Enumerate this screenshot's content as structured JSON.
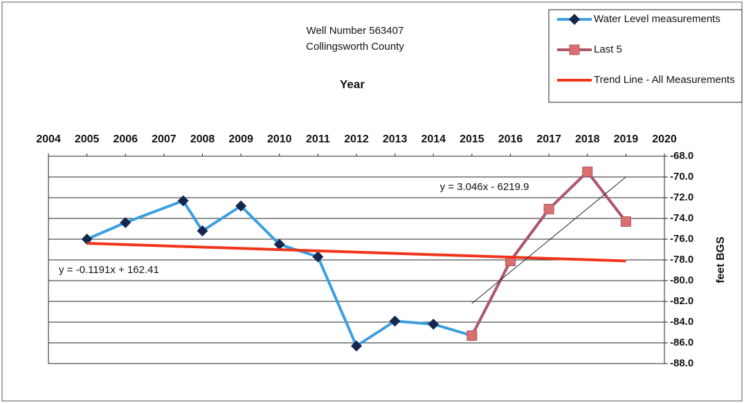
{
  "chart_data": {
    "type": "line",
    "title": "Well Number 563407",
    "subtitle": "Collingsworth County",
    "x_label": "Year",
    "y_label": "feet BGS",
    "xlim": [
      2004,
      2020
    ],
    "xticks": [
      2004,
      2005,
      2006,
      2007,
      2008,
      2009,
      2010,
      2011,
      2012,
      2013,
      2014,
      2015,
      2016,
      2017,
      2018,
      2019,
      2020
    ],
    "ylim": [
      -88,
      -68
    ],
    "yticks": [
      {
        "value": -68,
        "label": "-68.0"
      },
      {
        "value": -70,
        "label": "-70.0"
      },
      {
        "value": -72,
        "label": "-72.0"
      },
      {
        "value": -74,
        "label": "-74.0"
      },
      {
        "value": -76,
        "label": "-76.0"
      },
      {
        "value": -78,
        "label": "-78.0"
      },
      {
        "value": -80,
        "label": "-80.0"
      },
      {
        "value": -82,
        "label": "-82.0"
      },
      {
        "value": -84,
        "label": "-84.0"
      },
      {
        "value": -86,
        "label": "-86.0"
      },
      {
        "value": -88,
        "label": "-88.0"
      }
    ],
    "grid": true,
    "legend": "top-right",
    "series": [
      {
        "name": "Water Level measurements",
        "color": "#3a9ee0",
        "marker": "diamond",
        "marker_color": "#14284f",
        "x": [
          2005,
          2006,
          2007.5,
          2008,
          2009,
          2010,
          2011,
          2012,
          2013,
          2014,
          2015,
          2016,
          2017,
          2018,
          2019
        ],
        "values": [
          -76.0,
          -74.4,
          -72.3,
          -75.2,
          -72.8,
          -76.5,
          -77.7,
          -86.3,
          -83.9,
          -84.2,
          -85.3,
          -78.1,
          -73.1,
          -69.5,
          -74.3
        ]
      },
      {
        "name": "Last 5",
        "color": "#b0566a",
        "marker": "square",
        "marker_color": "#d9706e",
        "x": [
          2015,
          2016,
          2017,
          2018,
          2019
        ],
        "values": [
          -85.3,
          -78.1,
          -73.1,
          -69.5,
          -74.3
        ]
      },
      {
        "name": "Trend Line - All Measurements",
        "color": "#f0341c",
        "width": 4,
        "x": [
          2005,
          2019
        ],
        "values": [
          -76.4,
          -78.1
        ]
      },
      {
        "color": "#222222",
        "width": 1,
        "x": [
          2015,
          2019
        ],
        "values": [
          -82.2,
          -70.0
        ]
      }
    ],
    "annotations": [
      "y = 3.046x - 6219.9",
      "y = -0.1191x + 162.41"
    ]
  }
}
